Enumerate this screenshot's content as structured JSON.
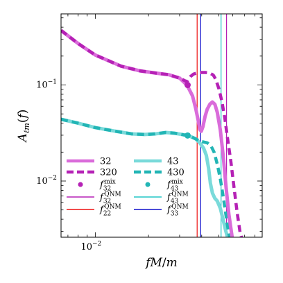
{
  "chart_data": {
    "type": "line",
    "xlabel": "fM/m",
    "ylabel": "A_{ℓm}(f)",
    "xscale": "log",
    "yscale": "log",
    "xlim": [
      0.0064,
      0.088
    ],
    "ylim": [
      0.0026,
      0.55
    ],
    "xticks": [
      {
        "value": 0.01,
        "label": "10⁻²"
      }
    ],
    "yticks": [
      {
        "value": 0.1,
        "label": "10⁻¹"
      },
      {
        "value": 0.01,
        "label": "10⁻²"
      }
    ],
    "legend_position": "lower-left",
    "series": [
      {
        "name": "32",
        "color": "#da6cda",
        "style": "solid",
        "points": [
          [
            0.0064,
            0.37
          ],
          [
            0.008,
            0.27
          ],
          [
            0.01,
            0.205
          ],
          [
            0.014,
            0.157
          ],
          [
            0.018,
            0.14
          ],
          [
            0.022,
            0.133
          ],
          [
            0.026,
            0.128
          ],
          [
            0.03,
            0.118
          ],
          [
            0.033,
            0.1
          ],
          [
            0.0355,
            0.077
          ],
          [
            0.037,
            0.057
          ],
          [
            0.0382,
            0.043
          ],
          [
            0.039,
            0.0345
          ],
          [
            0.0398,
            0.033
          ],
          [
            0.0407,
            0.037
          ],
          [
            0.0418,
            0.047
          ],
          [
            0.043,
            0.056
          ],
          [
            0.0445,
            0.063
          ],
          [
            0.046,
            0.0665
          ],
          [
            0.0475,
            0.063
          ],
          [
            0.049,
            0.052
          ],
          [
            0.051,
            0.034
          ],
          [
            0.053,
            0.018
          ],
          [
            0.055,
            0.0085
          ],
          [
            0.057,
            0.0045
          ],
          [
            0.0595,
            0.0026
          ]
        ]
      },
      {
        "name": "320",
        "color": "#b521b5",
        "style": "dashed",
        "points": [
          [
            0.0064,
            0.37
          ],
          [
            0.008,
            0.27
          ],
          [
            0.01,
            0.205
          ],
          [
            0.014,
            0.157
          ],
          [
            0.018,
            0.14
          ],
          [
            0.022,
            0.133
          ],
          [
            0.026,
            0.128
          ],
          [
            0.03,
            0.118
          ],
          [
            0.033,
            0.108
          ],
          [
            0.0345,
            0.122
          ],
          [
            0.036,
            0.13
          ],
          [
            0.038,
            0.134
          ],
          [
            0.04,
            0.135
          ],
          [
            0.042,
            0.135
          ],
          [
            0.0445,
            0.133
          ],
          [
            0.0465,
            0.127
          ],
          [
            0.048,
            0.115
          ],
          [
            0.05,
            0.092
          ],
          [
            0.052,
            0.068
          ],
          [
            0.054,
            0.046
          ],
          [
            0.056,
            0.028
          ],
          [
            0.0585,
            0.016
          ],
          [
            0.061,
            0.0085
          ],
          [
            0.0635,
            0.0047
          ],
          [
            0.066,
            0.0029
          ],
          [
            0.0672,
            0.0026
          ]
        ]
      },
      {
        "name": "43",
        "color": "#7adada",
        "style": "solid",
        "points": [
          [
            0.0064,
            0.044
          ],
          [
            0.008,
            0.04
          ],
          [
            0.01,
            0.036
          ],
          [
            0.013,
            0.033
          ],
          [
            0.016,
            0.031
          ],
          [
            0.019,
            0.0305
          ],
          [
            0.022,
            0.031
          ],
          [
            0.025,
            0.032
          ],
          [
            0.028,
            0.0315
          ],
          [
            0.031,
            0.0305
          ],
          [
            0.034,
            0.0295
          ],
          [
            0.037,
            0.0275
          ],
          [
            0.039,
            0.025
          ],
          [
            0.041,
            0.022
          ],
          [
            0.0425,
            0.0185
          ],
          [
            0.0438,
            0.0135
          ],
          [
            0.0448,
            0.0095
          ],
          [
            0.046,
            0.0075
          ],
          [
            0.0475,
            0.0066
          ],
          [
            0.049,
            0.0062
          ],
          [
            0.051,
            0.0052
          ],
          [
            0.053,
            0.0039
          ],
          [
            0.0548,
            0.003
          ],
          [
            0.056,
            0.0026
          ]
        ]
      },
      {
        "name": "430",
        "color": "#22b5b5",
        "style": "dashed",
        "points": [
          [
            0.0064,
            0.044
          ],
          [
            0.008,
            0.04
          ],
          [
            0.01,
            0.036
          ],
          [
            0.013,
            0.033
          ],
          [
            0.016,
            0.031
          ],
          [
            0.019,
            0.0305
          ],
          [
            0.022,
            0.031
          ],
          [
            0.025,
            0.032
          ],
          [
            0.028,
            0.0315
          ],
          [
            0.031,
            0.0305
          ],
          [
            0.034,
            0.0295
          ],
          [
            0.037,
            0.0275
          ],
          [
            0.039,
            0.026
          ],
          [
            0.041,
            0.0255
          ],
          [
            0.043,
            0.025
          ],
          [
            0.045,
            0.0235
          ],
          [
            0.047,
            0.02
          ],
          [
            0.049,
            0.015
          ],
          [
            0.051,
            0.0105
          ],
          [
            0.053,
            0.0068
          ],
          [
            0.055,
            0.0043
          ],
          [
            0.0565,
            0.0031
          ],
          [
            0.0575,
            0.0026
          ]
        ]
      }
    ],
    "mix_markers": [
      {
        "name": "f_32^mix",
        "color": "#b521b5",
        "x": 0.0333,
        "y": 0.1
      },
      {
        "name": "f_43^mix",
        "color": "#22b5b5",
        "x": 0.0333,
        "y": 0.0298
      }
    ],
    "vertical_lines": [
      {
        "name": "f_22^QNM",
        "color": "#ee1111",
        "x": 0.0377
      },
      {
        "name": "f_33^QNM",
        "color": "#1111cc",
        "x": 0.0395
      },
      {
        "name": "f_43^QNM",
        "color": "#22c6c6",
        "x": 0.0515
      },
      {
        "name": "f_32^QNM",
        "color": "#b521b5",
        "x": 0.0553
      }
    ],
    "legend": [
      {
        "label": "32",
        "kind": "line",
        "color": "#da6cda",
        "style": "solid"
      },
      {
        "label": "43",
        "kind": "line",
        "color": "#7adada",
        "style": "solid"
      },
      {
        "label": "320",
        "kind": "line",
        "color": "#b521b5",
        "style": "dashed"
      },
      {
        "label": "430",
        "kind": "line",
        "color": "#22b5b5",
        "style": "dashed"
      },
      {
        "kind": "marker",
        "color": "#b521b5",
        "sym": "f",
        "sub": "32",
        "sup": "mix"
      },
      {
        "kind": "marker",
        "color": "#22b5b5",
        "sym": "f",
        "sub": "43",
        "sup": "mix"
      },
      {
        "kind": "vline",
        "color": "#b521b5",
        "sym": "f",
        "sub": "32",
        "sup": "QNM"
      },
      {
        "kind": "vline",
        "color": "#22c6c6",
        "sym": "f",
        "sub": "43",
        "sup": "QNM"
      },
      {
        "kind": "vline",
        "color": "#ee1111",
        "sym": "f",
        "sub": "22",
        "sup": "QNM"
      },
      {
        "kind": "vline",
        "color": "#1111cc",
        "sym": "f",
        "sub": "33",
        "sup": "QNM"
      }
    ]
  }
}
